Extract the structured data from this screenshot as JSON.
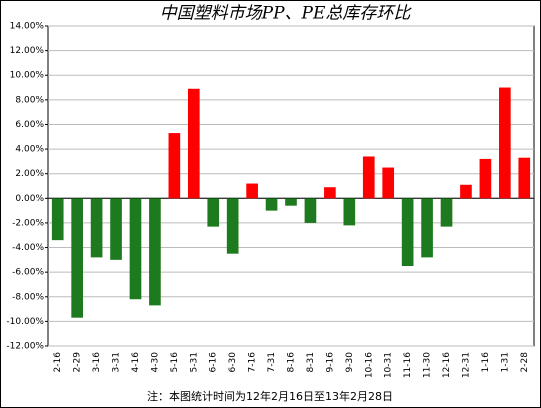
{
  "chart_data": {
    "type": "bar",
    "title": "中国塑料市场PP、PE总库存环比",
    "note": "注：本图统计时间为12年2月16日至13年2月28日",
    "categories": [
      "2-16",
      "2-29",
      "3-16",
      "3-31",
      "4-16",
      "4-30",
      "5-16",
      "5-31",
      "6-16",
      "6-30",
      "7-16",
      "7-31",
      "8-16",
      "8-31",
      "9-16",
      "9-30",
      "10-16",
      "10-31",
      "11-16",
      "11-30",
      "12-16",
      "12-31",
      "1-16",
      "1-31",
      "2-28"
    ],
    "values": [
      -3.4,
      -9.7,
      -4.8,
      -5.0,
      -8.2,
      -8.7,
      5.3,
      8.9,
      -2.3,
      -4.5,
      1.2,
      -1.0,
      -0.6,
      -2.0,
      0.9,
      -2.2,
      3.4,
      2.5,
      -5.5,
      -4.8,
      -2.3,
      1.1,
      3.2,
      9.0,
      3.3
    ],
    "positive_color": "#ff0000",
    "negative_color": "#1e7a1e",
    "ylim": [
      -12,
      14
    ],
    "yticks": [
      {
        "value": -12,
        "label": "-12.00%"
      },
      {
        "value": -10,
        "label": "-10.00%"
      },
      {
        "value": -8,
        "label": "-8.00%"
      },
      {
        "value": -6,
        "label": "-6.00%"
      },
      {
        "value": -4,
        "label": "-4.00%"
      },
      {
        "value": -2,
        "label": "-2.00%"
      },
      {
        "value": 0,
        "label": "0.00%"
      },
      {
        "value": 2,
        "label": "2.00%"
      },
      {
        "value": 4,
        "label": "4.00%"
      },
      {
        "value": 6,
        "label": "6.00%"
      },
      {
        "value": 8,
        "label": "8.00%"
      },
      {
        "value": 10,
        "label": "10.00%"
      },
      {
        "value": 12,
        "label": "12.00%"
      },
      {
        "value": 14,
        "label": "14.00%"
      }
    ],
    "grid": true
  }
}
